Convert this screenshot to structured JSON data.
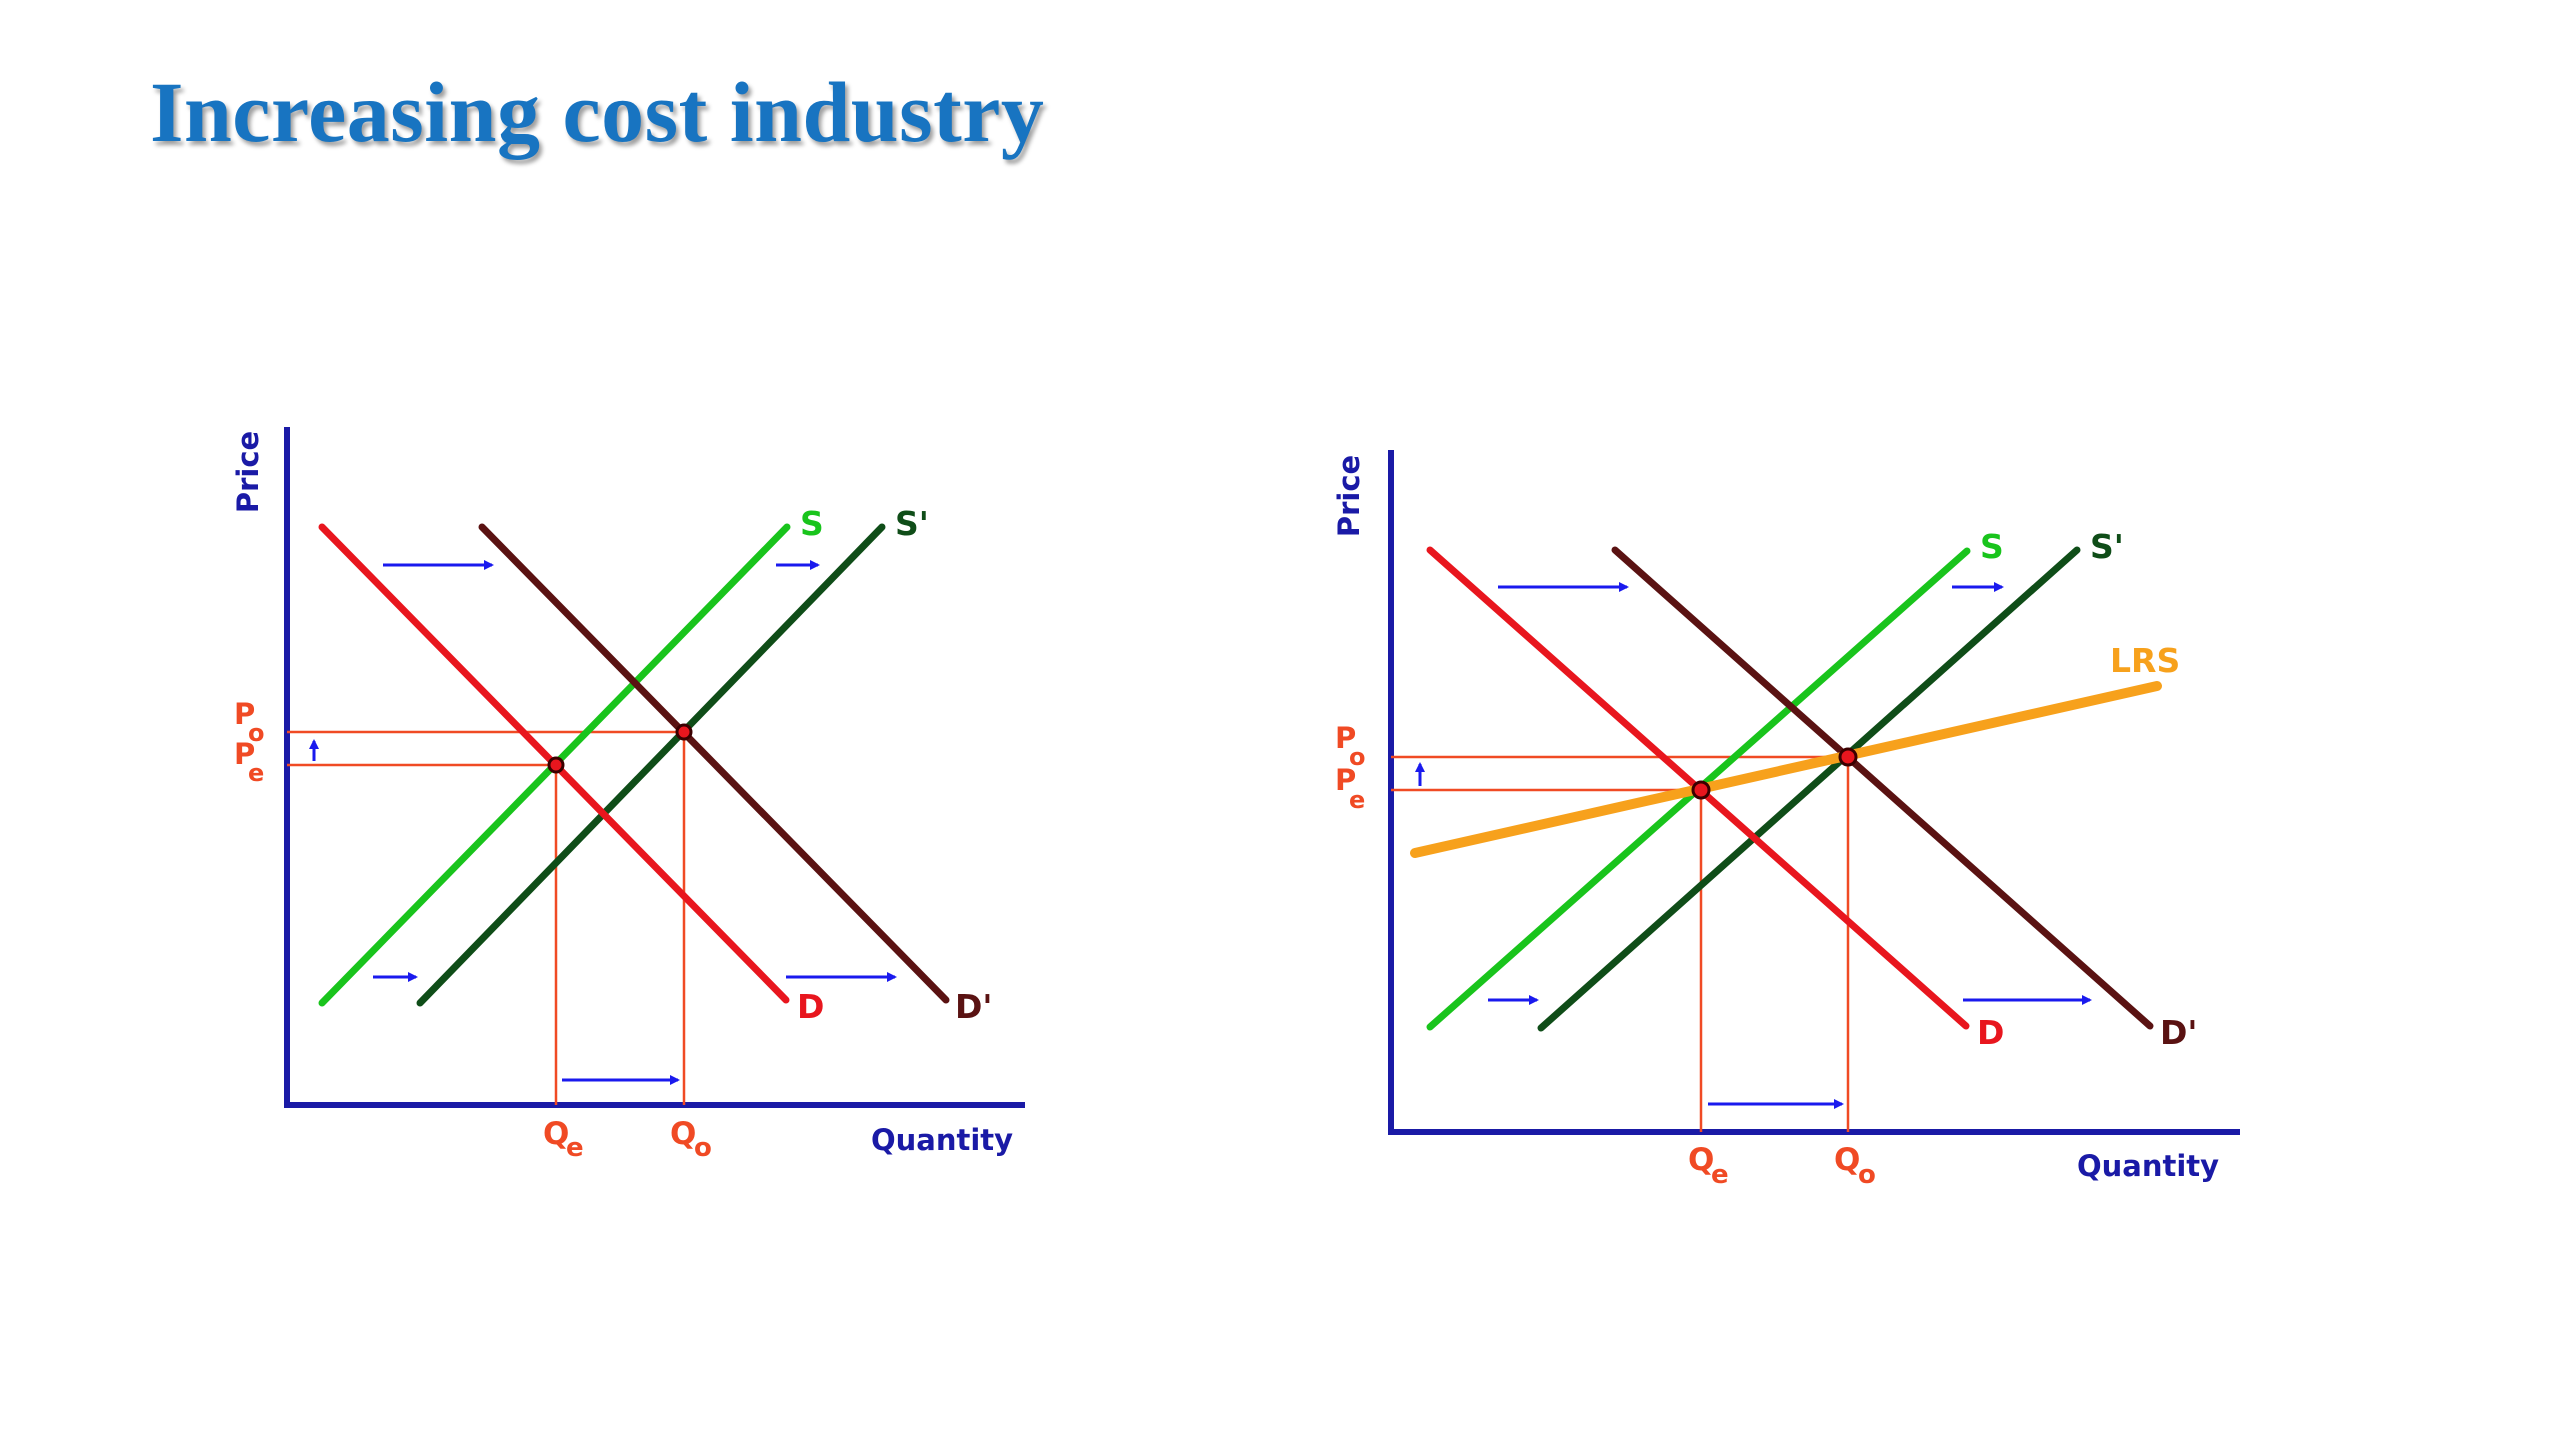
{
  "slide": {
    "title": "Increasing cost industry"
  },
  "colors": {
    "title": "#1874c1",
    "axis": "#1a1aa6",
    "arrow": "#1a1aee",
    "demand": "#e8161e",
    "demand_shifted": "#5a1212",
    "supply": "#19c41c",
    "supply_shifted": "#0f4d18",
    "guide": "#f04a24",
    "lrs": "#f7a11c"
  },
  "diagrams": [
    {
      "axes": {
        "y_label": "Price",
        "x_label": "Quantity"
      },
      "price_labels": {
        "p_original": {
          "base": "P",
          "sub": "o"
        },
        "p_equilibrium": {
          "base": "P",
          "sub": "e"
        }
      },
      "quantity_labels": {
        "q_equilibrium": {
          "base": "Q",
          "sub": "e"
        },
        "q_original": {
          "base": "Q",
          "sub": "o"
        }
      },
      "curves": {
        "supply": "S",
        "supply_shifted": "S'",
        "demand": "D",
        "demand_shifted": "D'"
      }
    },
    {
      "axes": {
        "y_label": "Price",
        "x_label": "Quantity"
      },
      "price_labels": {
        "p_original": {
          "base": "P",
          "sub": "o"
        },
        "p_equilibrium": {
          "base": "P",
          "sub": "e"
        }
      },
      "quantity_labels": {
        "q_equilibrium": {
          "base": "Q",
          "sub": "e"
        },
        "q_original": {
          "base": "Q",
          "sub": "o"
        }
      },
      "curves": {
        "supply": "S",
        "supply_shifted": "S'",
        "demand": "D",
        "demand_shifted": "D'",
        "long_run_supply": "LRS"
      }
    }
  ]
}
